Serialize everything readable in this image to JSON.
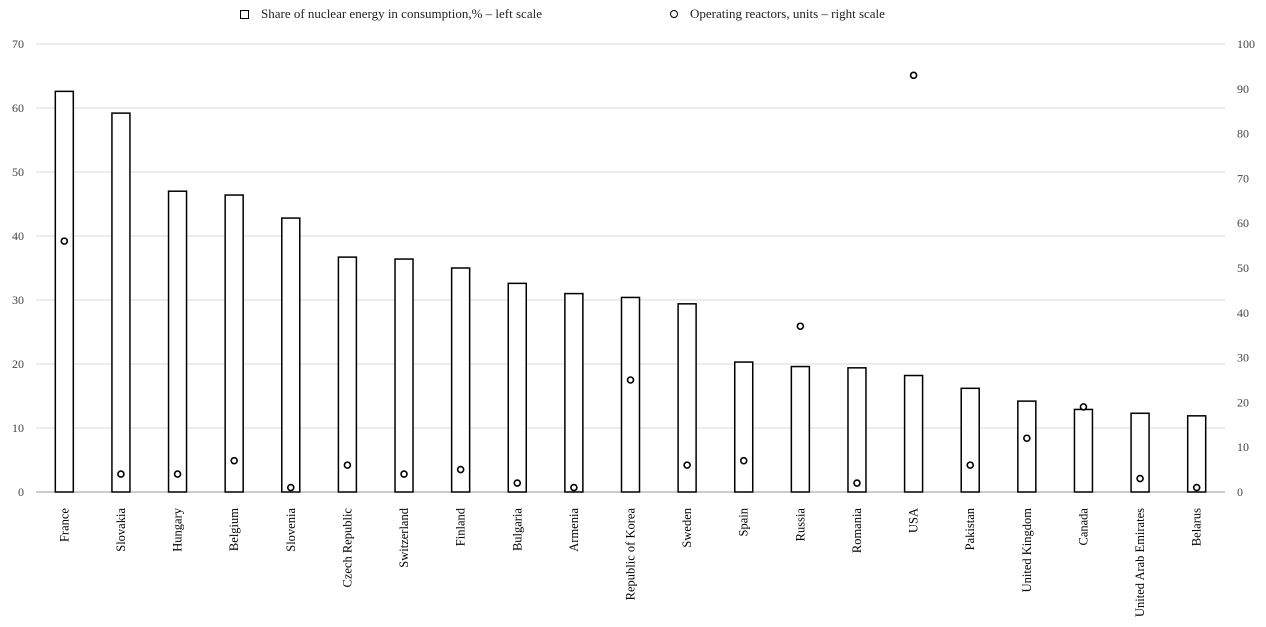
{
  "chart_data": {
    "type": "bar",
    "legend": {
      "bars_label": "Share of nuclear energy in consumption,% – left scale",
      "points_label": "Operating reactors, units – right scale",
      "placement": "top"
    },
    "categories": [
      "France",
      "Slovakia",
      "Hungary",
      "Belgium",
      "Slovenia",
      "Czech Republic",
      "Switzerland",
      "Finland",
      "Bulgaria",
      "Armenia",
      "Republic of Korea",
      "Sweden",
      "Spain",
      "Russia",
      "Romania",
      "USA",
      "Pakistan",
      "United Kingdom",
      "Canada",
      "United Arab Emirates",
      "Belarus"
    ],
    "series": [
      {
        "name": "Share of nuclear energy in consumption,% – left scale",
        "kind": "bar",
        "axis": "left",
        "values": [
          62.6,
          59.2,
          47.0,
          46.4,
          42.8,
          36.7,
          36.4,
          35.0,
          32.6,
          31.0,
          30.4,
          29.4,
          20.3,
          19.6,
          19.4,
          18.2,
          16.2,
          14.2,
          12.9,
          12.3,
          11.9
        ]
      },
      {
        "name": "Operating reactors, units – right scale",
        "kind": "scatter",
        "axis": "right",
        "values": [
          56,
          4,
          4,
          7,
          1,
          6,
          4,
          5,
          2,
          1,
          25,
          6,
          7,
          37,
          2,
          93,
          6,
          12,
          19,
          3,
          1
        ]
      }
    ],
    "left_axis": {
      "ylim": [
        0,
        70
      ],
      "ticks": [
        0,
        10,
        20,
        30,
        40,
        50,
        60,
        70
      ]
    },
    "right_axis": {
      "ylim": [
        0,
        100
      ],
      "ticks": [
        0,
        10,
        20,
        30,
        40,
        50,
        60,
        70,
        80,
        90,
        100
      ]
    },
    "grid": true,
    "colors": {
      "bar_fill": "#ffffff",
      "bar_stroke": "#000000",
      "grid": "#d9d9d9",
      "point_stroke": "#000000"
    }
  }
}
